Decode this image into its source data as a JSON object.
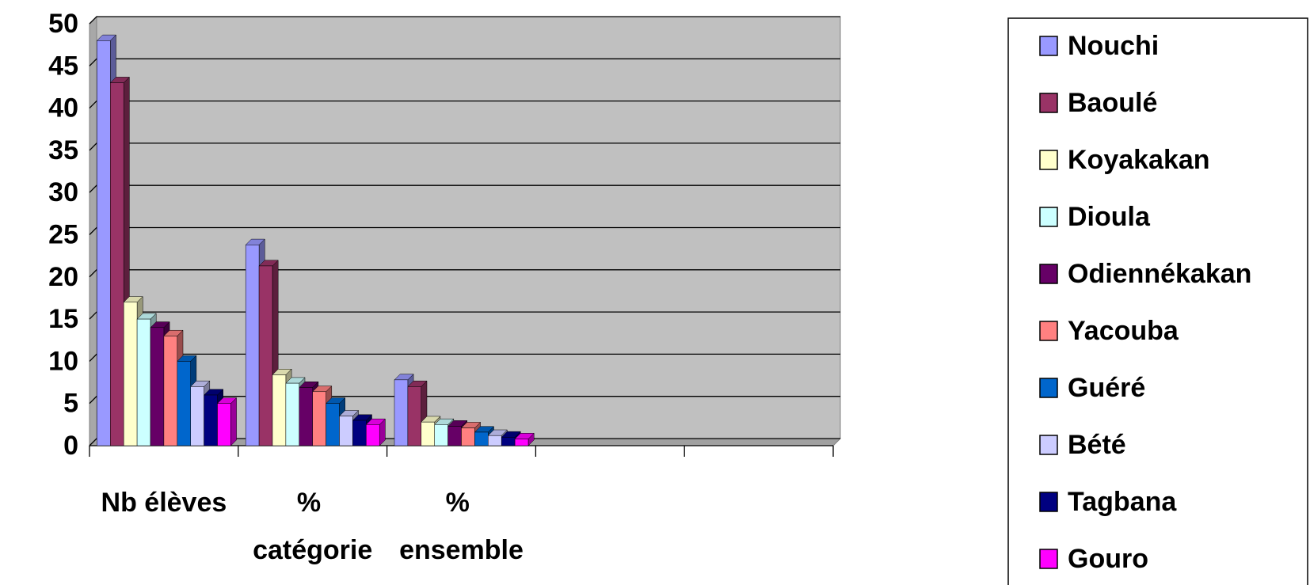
{
  "chart_data": {
    "type": "bar3d",
    "categories": [
      "Nb élèves",
      "% catégorie",
      "% ensemble",
      null,
      null
    ],
    "series": [
      {
        "name": "Nouchi",
        "color": "#9999ff",
        "values": [
          48,
          23.8,
          7.8,
          null,
          null
        ]
      },
      {
        "name": "Baoulé",
        "color": "#993366",
        "values": [
          43,
          21.3,
          7.0,
          null,
          null
        ]
      },
      {
        "name": "Koyakakan",
        "color": "#ffffcc",
        "values": [
          17,
          8.4,
          2.8,
          null,
          null
        ]
      },
      {
        "name": "Dioula",
        "color": "#ccffff",
        "values": [
          15,
          7.4,
          2.5,
          null,
          null
        ]
      },
      {
        "name": "Odiennékakan",
        "color": "#660066",
        "values": [
          14,
          6.9,
          2.3,
          null,
          null
        ]
      },
      {
        "name": "Yacouba",
        "color": "#ff8080",
        "values": [
          13,
          6.4,
          2.1,
          null,
          null
        ]
      },
      {
        "name": "Guéré",
        "color": "#0066cc",
        "values": [
          10,
          5.0,
          1.6,
          null,
          null
        ]
      },
      {
        "name": "Bété",
        "color": "#ccccff",
        "values": [
          7,
          3.5,
          1.2,
          null,
          null
        ]
      },
      {
        "name": "Tagbana",
        "color": "#000080",
        "values": [
          6,
          3.0,
          1.0,
          null,
          null
        ]
      },
      {
        "name": "Gouro",
        "color": "#ff00ff",
        "values": [
          5,
          2.5,
          0.8,
          null,
          null
        ]
      }
    ],
    "ylim": [
      0,
      50
    ],
    "yticks": [
      0,
      5,
      10,
      15,
      20,
      25,
      30,
      35,
      40,
      45,
      50
    ],
    "grid": true,
    "legend": "right"
  }
}
